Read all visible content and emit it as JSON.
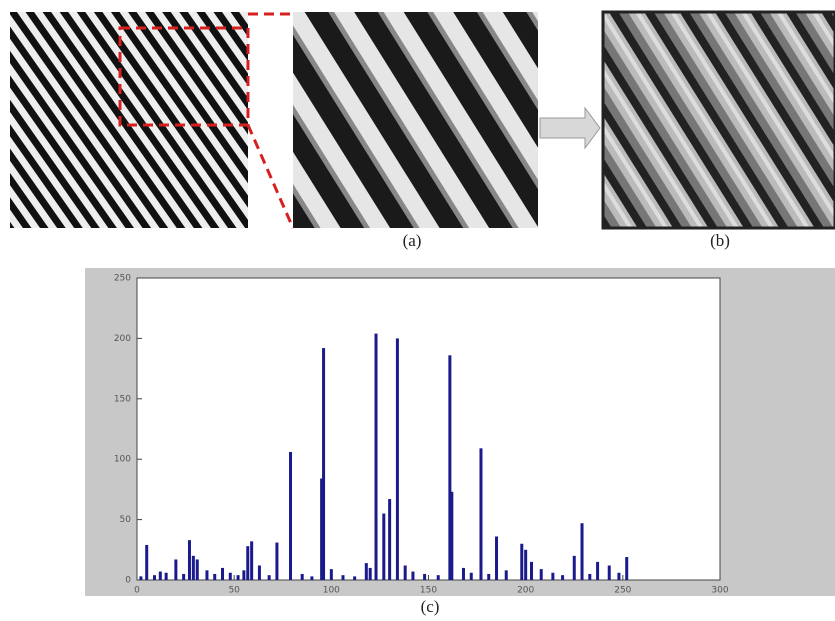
{
  "captions": {
    "a": "(a)",
    "b": "(b)",
    "c": "(c)"
  },
  "chart_data": {
    "type": "bar",
    "color": "#1a1a8c",
    "grid": false,
    "x": [
      2,
      5,
      9,
      12,
      15,
      20,
      24,
      27,
      29,
      31,
      36,
      40,
      44,
      48,
      52,
      55,
      57,
      59,
      63,
      68,
      72,
      79,
      85,
      90,
      95,
      96,
      100,
      106,
      112,
      118,
      120,
      123,
      127,
      130,
      134,
      138,
      142,
      148,
      155,
      161,
      162,
      168,
      172,
      177,
      181,
      185,
      190,
      198,
      200,
      203,
      208,
      214,
      219,
      225,
      229,
      233,
      237,
      243,
      248,
      252
    ],
    "values": [
      3,
      29,
      4,
      7,
      6,
      17,
      5,
      33,
      20,
      17,
      8,
      5,
      10,
      6,
      4,
      8,
      28,
      32,
      12,
      4,
      31,
      106,
      5,
      3,
      84,
      192,
      9,
      4,
      3,
      14,
      10,
      204,
      55,
      67,
      200,
      12,
      7,
      5,
      4,
      186,
      73,
      10,
      6,
      109,
      5,
      36,
      8,
      30,
      25,
      15,
      9,
      6,
      4,
      20,
      47,
      5,
      15,
      12,
      6,
      19
    ],
    "xlim": [
      0,
      300
    ],
    "xticks": [
      0,
      50,
      100,
      150,
      200,
      250,
      300
    ],
    "ylim": [
      0,
      250
    ],
    "yticks": [
      0,
      50,
      100,
      150,
      200,
      250
    ]
  }
}
